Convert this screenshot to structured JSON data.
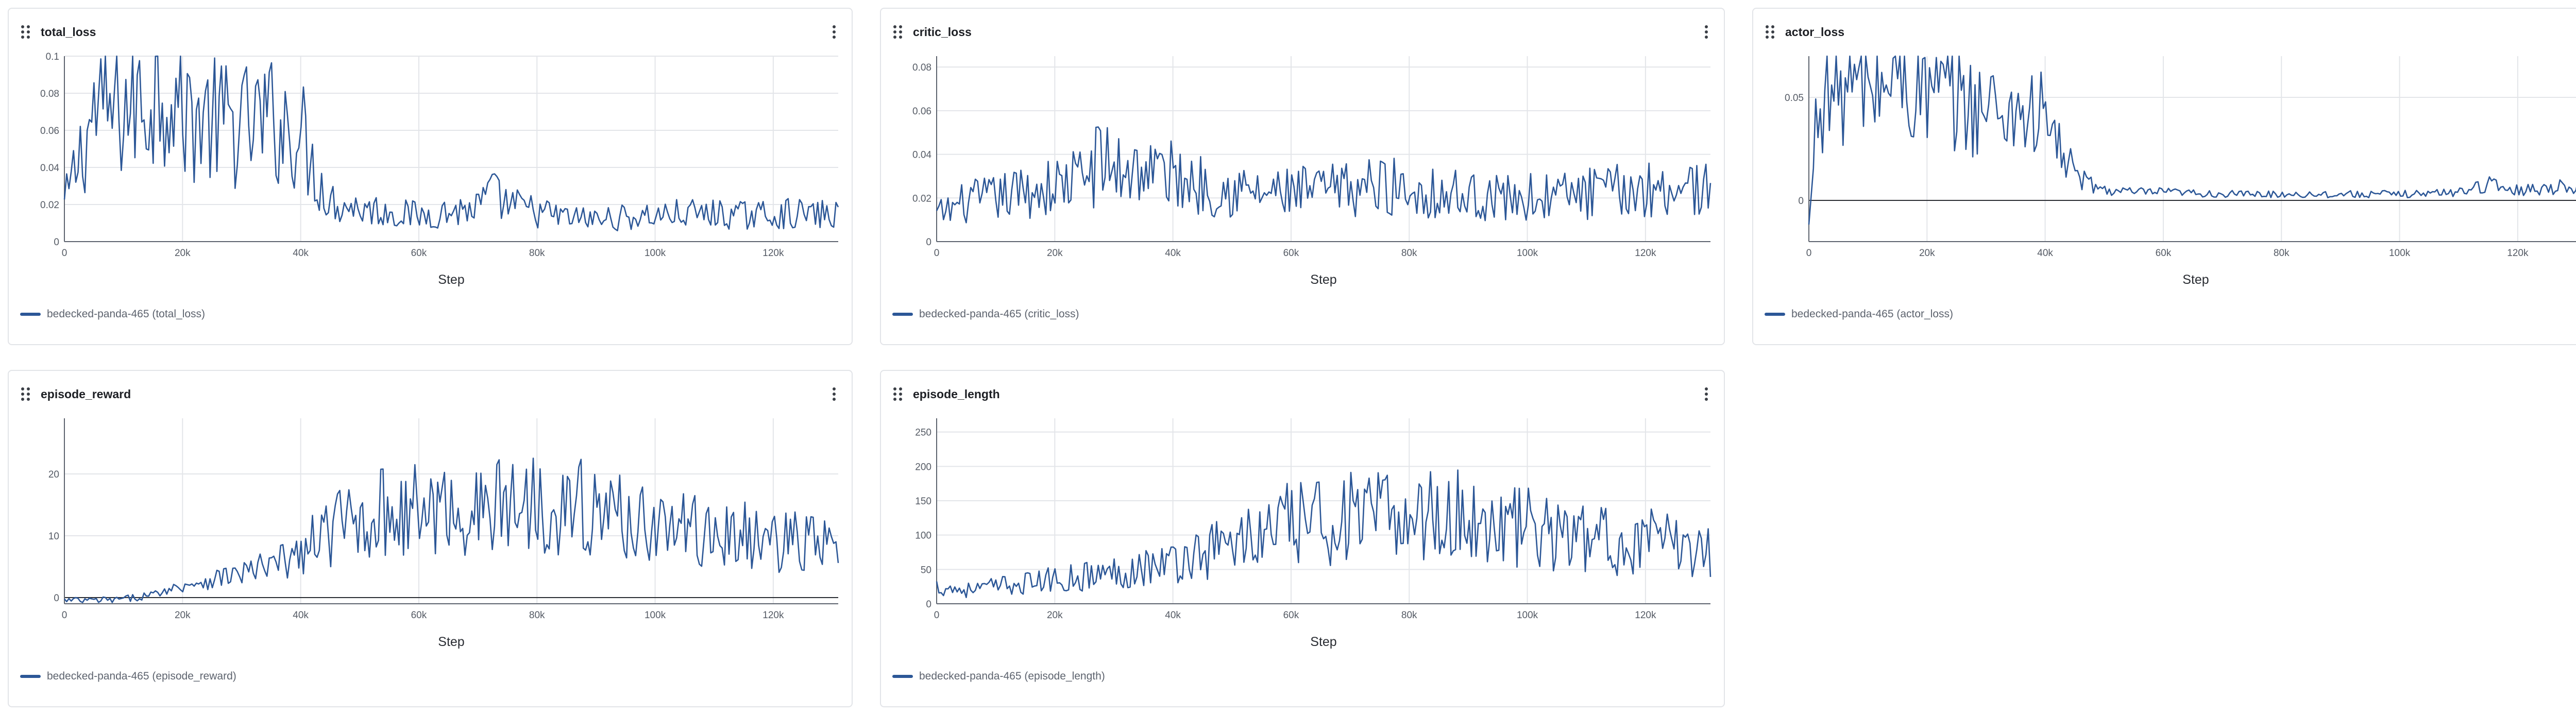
{
  "icons": {
    "drag": "drag-handle-icon",
    "menu": "vertical-dots-menu-icon"
  },
  "colors": {
    "series": "#2c5797",
    "grid": "#e3e5e9",
    "axis": "#5d636e"
  },
  "chart_data": [
    {
      "id": "total_loss",
      "type": "line",
      "title": "total_loss",
      "xlabel": "Step",
      "ylabel": "",
      "xlim": [
        0,
        131000
      ],
      "ylim": [
        0,
        0.1
      ],
      "xticks": [
        0,
        20000,
        40000,
        60000,
        80000,
        100000,
        120000
      ],
      "xticklabels": [
        "0",
        "20k",
        "40k",
        "60k",
        "80k",
        "100k",
        "120k"
      ],
      "yticks": [
        0,
        0.02,
        0.04,
        0.06,
        0.08,
        0.1
      ],
      "yticklabels": [
        "0",
        "0.02",
        "0.04",
        "0.06",
        "0.08",
        "0.1"
      ],
      "grid": true,
      "legend": "bottom-left",
      "series": [
        {
          "name": "bedecked-panda-465 (total_loss)",
          "x": [
            0,
            5000,
            10000,
            15000,
            17500,
            20000,
            25000,
            30000,
            35000,
            40000,
            42000,
            45000,
            50000,
            55000,
            60000,
            65000,
            70000,
            72000,
            75000,
            80000,
            85000,
            90000,
            95000,
            100000,
            105000,
            110000,
            115000,
            120000,
            125000,
            131000
          ],
          "y": [
            0.02,
            0.07,
            0.072,
            0.078,
            0.09,
            0.07,
            0.065,
            0.062,
            0.065,
            0.06,
            0.04,
            0.022,
            0.018,
            0.016,
            0.014,
            0.016,
            0.018,
            0.026,
            0.02,
            0.016,
            0.013,
            0.012,
            0.013,
            0.014,
            0.015,
            0.015,
            0.014,
            0.015,
            0.015,
            0.014
          ]
        }
      ]
    },
    {
      "id": "critic_loss",
      "type": "line",
      "title": "critic_loss",
      "xlabel": "Step",
      "ylabel": "",
      "xlim": [
        0,
        131000
      ],
      "ylim": [
        0,
        0.085
      ],
      "xticks": [
        0,
        20000,
        40000,
        60000,
        80000,
        100000,
        120000
      ],
      "xticklabels": [
        "0",
        "20k",
        "40k",
        "60k",
        "80k",
        "100k",
        "120k"
      ],
      "yticks": [
        0,
        0.02,
        0.04,
        0.06,
        0.08
      ],
      "yticklabels": [
        "0",
        "0.02",
        "0.04",
        "0.06",
        "0.08"
      ],
      "grid": true,
      "legend": "bottom-left",
      "series": [
        {
          "name": "bedecked-panda-465 (critic_loss)",
          "x": [
            0,
            5000,
            10000,
            15000,
            20000,
            25000,
            28000,
            30000,
            35000,
            40000,
            45000,
            50000,
            55000,
            60000,
            65000,
            70000,
            75000,
            80000,
            85000,
            90000,
            95000,
            100000,
            105000,
            110000,
            115000,
            120000,
            125000,
            131000
          ],
          "y": [
            0.012,
            0.018,
            0.02,
            0.023,
            0.025,
            0.03,
            0.038,
            0.033,
            0.034,
            0.03,
            0.026,
            0.024,
            0.022,
            0.022,
            0.023,
            0.024,
            0.026,
            0.024,
            0.022,
            0.021,
            0.02,
            0.02,
            0.021,
            0.022,
            0.023,
            0.024,
            0.026,
            0.024
          ]
        }
      ]
    },
    {
      "id": "actor_loss",
      "type": "line",
      "title": "actor_loss",
      "xlabel": "Step",
      "ylabel": "",
      "xlim": [
        0,
        131000
      ],
      "ylim": [
        -0.02,
        0.07
      ],
      "xticks": [
        0,
        20000,
        40000,
        60000,
        80000,
        100000,
        120000
      ],
      "xticklabels": [
        "0",
        "20k",
        "40k",
        "60k",
        "80k",
        "100k",
        "120k"
      ],
      "yticks": [
        0,
        0.05
      ],
      "yticklabels": [
        "0",
        "0.05"
      ],
      "grid": true,
      "legend": "bottom-left",
      "series": [
        {
          "name": "bedecked-panda-465 (actor_loss)",
          "x": [
            0,
            1500,
            5000,
            10000,
            14000,
            20000,
            25000,
            30000,
            35000,
            40000,
            43000,
            46000,
            50000,
            55000,
            60000,
            70000,
            80000,
            90000,
            100000,
            110000,
            114000,
            120000,
            125000,
            131000
          ],
          "y": [
            -0.015,
            0.05,
            0.055,
            0.055,
            0.06,
            0.052,
            0.048,
            0.045,
            0.044,
            0.04,
            0.022,
            0.01,
            0.005,
            0.004,
            0.004,
            0.003,
            0.003,
            0.003,
            0.003,
            0.004,
            0.008,
            0.005,
            0.006,
            0.008
          ]
        }
      ]
    },
    {
      "id": "episode_reward",
      "type": "line",
      "title": "episode_reward",
      "xlabel": "Step",
      "ylabel": "",
      "xlim": [
        0,
        131000
      ],
      "ylim": [
        -1,
        29
      ],
      "xticks": [
        0,
        20000,
        40000,
        60000,
        80000,
        100000,
        120000
      ],
      "xticklabels": [
        "0",
        "20k",
        "40k",
        "60k",
        "80k",
        "100k",
        "120k"
      ],
      "yticks": [
        0,
        10,
        20
      ],
      "yticklabels": [
        "0",
        "10",
        "20"
      ],
      "grid": true,
      "legend": "bottom-left",
      "series": [
        {
          "name": "bedecked-panda-465 (episode_reward)",
          "x": [
            0,
            5000,
            10000,
            15000,
            20000,
            25000,
            30000,
            35000,
            40000,
            45000,
            50000,
            55000,
            60000,
            65000,
            70000,
            75000,
            80000,
            85000,
            90000,
            95000,
            100000,
            105000,
            110000,
            115000,
            120000,
            125000,
            131000
          ],
          "y": [
            -0.5,
            -0.5,
            -0.3,
            0.5,
            2,
            3,
            4,
            5,
            7,
            11,
            13,
            14,
            14,
            14,
            14,
            15,
            16,
            15,
            14,
            13,
            12,
            11,
            10,
            10,
            9,
            9,
            8
          ]
        }
      ]
    },
    {
      "id": "episode_length",
      "type": "line",
      "title": "episode_length",
      "xlabel": "Step",
      "ylabel": "",
      "xlim": [
        0,
        131000
      ],
      "ylim": [
        0,
        270
      ],
      "xticks": [
        0,
        20000,
        40000,
        60000,
        80000,
        100000,
        120000
      ],
      "xticklabels": [
        "0",
        "20k",
        "40k",
        "60k",
        "80k",
        "100k",
        "120k"
      ],
      "yticks": [
        0,
        50,
        100,
        150,
        200,
        250
      ],
      "yticklabels": [
        "0",
        "50",
        "100",
        "150",
        "200",
        "250"
      ],
      "grid": true,
      "legend": "bottom-left",
      "series": [
        {
          "name": "bedecked-panda-465 (episode_length)",
          "x": [
            0,
            5000,
            10000,
            15000,
            20000,
            25000,
            30000,
            35000,
            40000,
            45000,
            50000,
            55000,
            60000,
            65000,
            70000,
            75000,
            80000,
            85000,
            90000,
            95000,
            100000,
            105000,
            110000,
            115000,
            120000,
            125000,
            131000
          ],
          "y": [
            25,
            20,
            25,
            30,
            35,
            40,
            45,
            55,
            60,
            75,
            90,
            100,
            115,
            120,
            125,
            125,
            130,
            130,
            125,
            115,
            110,
            100,
            95,
            90,
            90,
            85,
            80
          ]
        }
      ]
    }
  ]
}
